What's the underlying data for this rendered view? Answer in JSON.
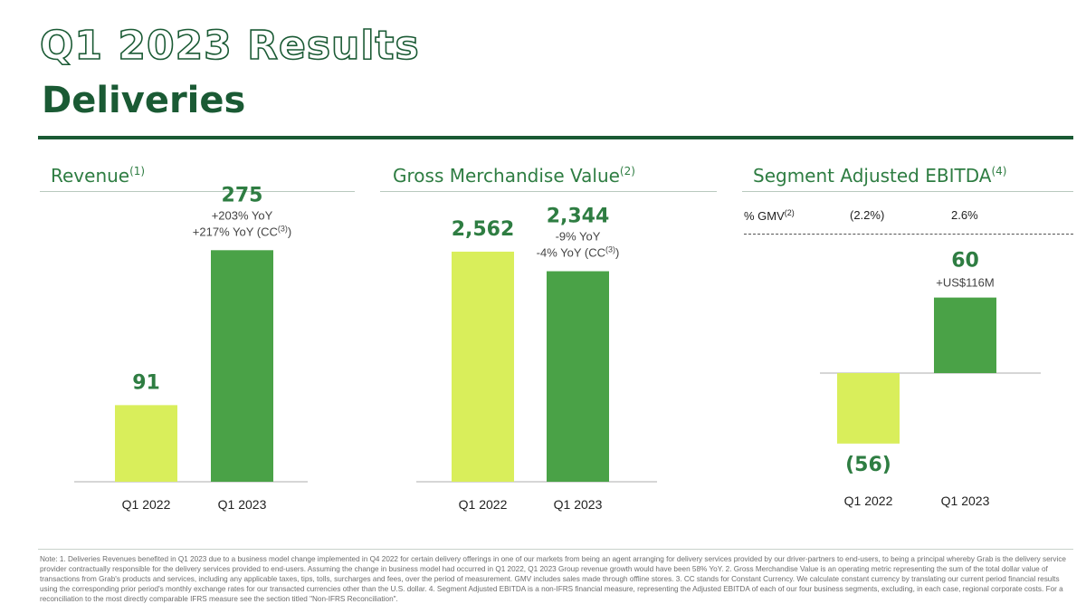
{
  "header": {
    "title": "Q1 2023 Results",
    "subtitle": "Deliveries"
  },
  "colors": {
    "dark_green": "#1a5a34",
    "accent_green": "#2e7d42",
    "bar_light": "#d9ee5b",
    "bar_dark": "#4aa247"
  },
  "sections": {
    "revenue": {
      "title": "Revenue",
      "sup": "(1)"
    },
    "gmv": {
      "title": "Gross Merchandise Value",
      "sup": "(2)"
    },
    "ebitda": {
      "title": "Segment Adjusted EBITDA",
      "sup": "(4)"
    }
  },
  "ebitda_gmv_row": {
    "label": "% GMV",
    "label_sup": "(2)",
    "values": [
      "(2.2%)",
      "2.6%"
    ]
  },
  "chart_data": [
    {
      "type": "bar",
      "title": "Revenue",
      "categories": [
        "Q1 2022",
        "Q1 2023"
      ],
      "values": [
        91,
        275
      ],
      "value_labels": [
        "91",
        "275"
      ],
      "annotations": [
        [],
        [
          "+203% YoY",
          "+217% YoY (CC(3))"
        ]
      ],
      "ylim": [
        0,
        320
      ]
    },
    {
      "type": "bar",
      "title": "Gross Merchandise Value",
      "categories": [
        "Q1 2022",
        "Q1 2023"
      ],
      "values": [
        2562,
        2344
      ],
      "value_labels": [
        "2,562",
        "2,344"
      ],
      "annotations": [
        [],
        [
          "-9% YoY",
          "-4% YoY (CC(3))"
        ]
      ],
      "ylim": [
        0,
        3000
      ]
    },
    {
      "type": "bar",
      "title": "Segment Adjusted EBITDA",
      "categories": [
        "Q1 2022",
        "Q1 2023"
      ],
      "values": [
        -56,
        60
      ],
      "value_labels": [
        "(56)",
        "60"
      ],
      "annotations": [
        [],
        [
          "+US$116M"
        ]
      ],
      "ylim": [
        -60,
        70
      ]
    }
  ],
  "footnote": "Note: 1. Deliveries Revenues benefited in Q1 2023 due to a business model change implemented in Q4 2022 for certain delivery offerings in one of our markets from being an agent arranging for delivery services provided by our driver-partners to end-users, to being a principal whereby Grab is the delivery service provider contractually responsible for the delivery services provided to end-users. Assuming the change in business model had occurred in Q1 2022, Q1 2023 Group revenue growth would have been 58% YoY. 2. Gross Merchandise Value is an operating metric representing the sum of the total dollar value of transactions from Grab's products and services, including any applicable taxes, tips, tolls, surcharges and fees, over the period of measurement. GMV includes sales made through offline stores. 3. CC stands for Constant Currency. We calculate constant currency by translating our current period financial results using the corresponding prior period's monthly exchange rates for our transacted currencies other than the U.S. dollar. 4. Segment Adjusted EBITDA is a non-IFRS financial measure, representing the Adjusted EBITDA of each of our four business segments, excluding, in each case, regional corporate costs. For a reconciliation to the most directly comparable IFRS measure see the section titled \"Non-IFRS Reconciliation\"."
}
